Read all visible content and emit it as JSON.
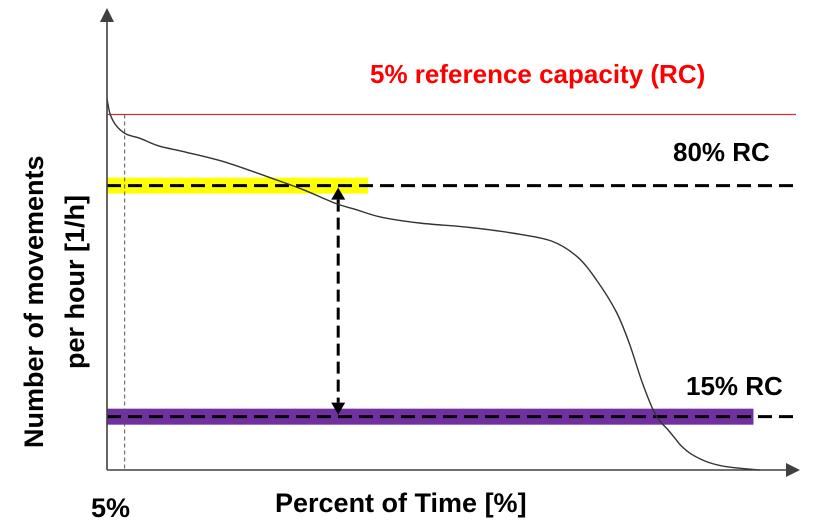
{
  "chart_data": {
    "type": "line",
    "title": "",
    "xlabel": "Percent of Time [%]",
    "ylabel_line1": "Number of movements",
    "ylabel_line2": "per hour [1/h]",
    "xlim": [
      0,
      100
    ],
    "ylim": [
      0,
      100
    ],
    "x_tick_labels": [
      {
        "x": 5,
        "label": "5%"
      }
    ],
    "grid": false,
    "curve": {
      "x": [
        0,
        0.5,
        1.5,
        3,
        5,
        8,
        12,
        18,
        25,
        30,
        35,
        38,
        42,
        48,
        55,
        62,
        68,
        72,
        75,
        78,
        80,
        82,
        84,
        86,
        87,
        88,
        89.5,
        92,
        95,
        100
      ],
      "y": [
        94,
        90,
        87,
        85,
        84,
        82,
        80.5,
        78,
        74,
        71,
        67.5,
        66,
        64,
        62.5,
        61.5,
        60,
        58,
        54,
        48,
        40,
        32,
        22,
        14,
        10,
        8,
        6,
        4,
        2,
        0.8,
        0
      ]
    },
    "reference_lines": [
      {
        "name": "5% reference capacity (RC)",
        "y": 90,
        "color": "#cc3333",
        "style": "solid"
      },
      {
        "name": "80% RC",
        "y": 72,
        "color": "#000000",
        "style": "dashed"
      },
      {
        "name": "15% RC",
        "y": 13.5,
        "color": "#000000",
        "style": "dashed"
      }
    ],
    "bands": [
      {
        "y": 72,
        "x_start": 0,
        "x_end": 40,
        "color": "#ffff00"
      },
      {
        "y": 13.5,
        "x_start": 0,
        "x_end": 99,
        "color": "#7030a0"
      }
    ],
    "vertical_marker": {
      "x": 5,
      "style": "dashed"
    },
    "range_arrow": {
      "x": 40,
      "y_top": 72,
      "y_bottom": 13.5
    },
    "colors": {
      "title_red": "#ff0000",
      "axis": "#404040"
    }
  }
}
